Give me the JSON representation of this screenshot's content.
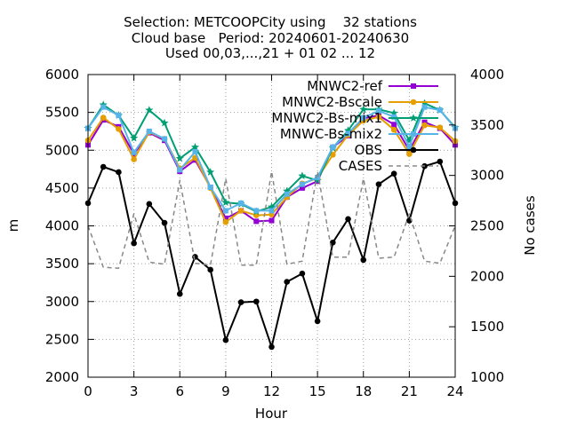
{
  "chart_data": {
    "type": "line",
    "title": [
      "Selection: METCOOPCity using    32 stations",
      "Cloud base   Period: 20240601-20240630",
      "Used 00,03,...,21 + 01 02 ... 12"
    ],
    "xlabel": "Hour",
    "ylabel": "m",
    "y2label": "No cases",
    "xlim": [
      0,
      24
    ],
    "ylim": [
      2000,
      6000
    ],
    "y2lim": [
      1000,
      4000
    ],
    "xticks": [
      0,
      3,
      6,
      9,
      12,
      15,
      18,
      21,
      24
    ],
    "yticks": [
      2000,
      2500,
      3000,
      3500,
      4000,
      4500,
      5000,
      5500,
      6000
    ],
    "y2ticks": [
      1000,
      1500,
      2000,
      2500,
      3000,
      3500,
      4000
    ],
    "grid": true,
    "legend_position": "top-right",
    "x": [
      0,
      1,
      2,
      3,
      4,
      5,
      6,
      7,
      8,
      9,
      10,
      11,
      12,
      13,
      14,
      15,
      16,
      17,
      18,
      19,
      20,
      21,
      22,
      23,
      24
    ],
    "series": [
      {
        "name": "MNWC2-ref",
        "axis": "y",
        "color": "#9400d3",
        "marker": "square",
        "dash": false,
        "values": [
          5070,
          5400,
          5310,
          4950,
          5230,
          5130,
          4720,
          4870,
          4510,
          4100,
          4200,
          4060,
          4070,
          4380,
          4500,
          4590,
          5040,
          5190,
          5420,
          5460,
          5340,
          5000,
          5370,
          5290,
          5070
        ]
      },
      {
        "name": "MNWC2-Bscale",
        "axis": "y",
        "color": "#e69f00",
        "marker": "circle",
        "dash": false,
        "values": [
          5130,
          5430,
          5280,
          4880,
          5240,
          5150,
          4760,
          4900,
          4500,
          4050,
          4200,
          4140,
          4150,
          4380,
          4560,
          4630,
          4940,
          5200,
          5390,
          5440,
          5270,
          4950,
          5330,
          5300,
          5120
        ]
      },
      {
        "name": "MNWC2-Bs-mix1",
        "axis": "y",
        "color": "#009e73",
        "marker": "star",
        "dash": false,
        "values": [
          5290,
          5600,
          5460,
          5160,
          5530,
          5360,
          4890,
          5040,
          4710,
          4310,
          4290,
          4190,
          4250,
          4460,
          4660,
          4600,
          5030,
          5260,
          5540,
          5540,
          5490,
          5130,
          5620,
          5530,
          5300
        ]
      },
      {
        "name": "MNWC-Bs-mix2",
        "axis": "y",
        "color": "#56b4e9",
        "marker": "square",
        "dash": false,
        "values": [
          5290,
          5570,
          5460,
          4970,
          5250,
          5150,
          4740,
          4980,
          4510,
          4200,
          4300,
          4200,
          4200,
          4420,
          4550,
          4640,
          5040,
          5220,
          5430,
          5520,
          5440,
          5050,
          5570,
          5530,
          5290
        ]
      },
      {
        "name": "OBS",
        "axis": "y",
        "color": "#000000",
        "marker": "circle",
        "dash": false,
        "values": [
          4300,
          4780,
          4710,
          3770,
          4290,
          4040,
          3100,
          3590,
          3420,
          2490,
          2990,
          3000,
          2400,
          3260,
          3370,
          2740,
          3780,
          4090,
          3550,
          4550,
          4690,
          4070,
          4790,
          4850,
          4300
        ]
      },
      {
        "name": "CASES",
        "axis": "y2",
        "color": "#888888",
        "marker": "none",
        "dash": true,
        "values": [
          2500,
          2090,
          2080,
          2620,
          2140,
          2120,
          2950,
          2130,
          2110,
          2970,
          2110,
          2110,
          3040,
          2120,
          2150,
          3040,
          2190,
          2190,
          2970,
          2180,
          2190,
          2620,
          2150,
          2130,
          2500
        ]
      }
    ]
  }
}
